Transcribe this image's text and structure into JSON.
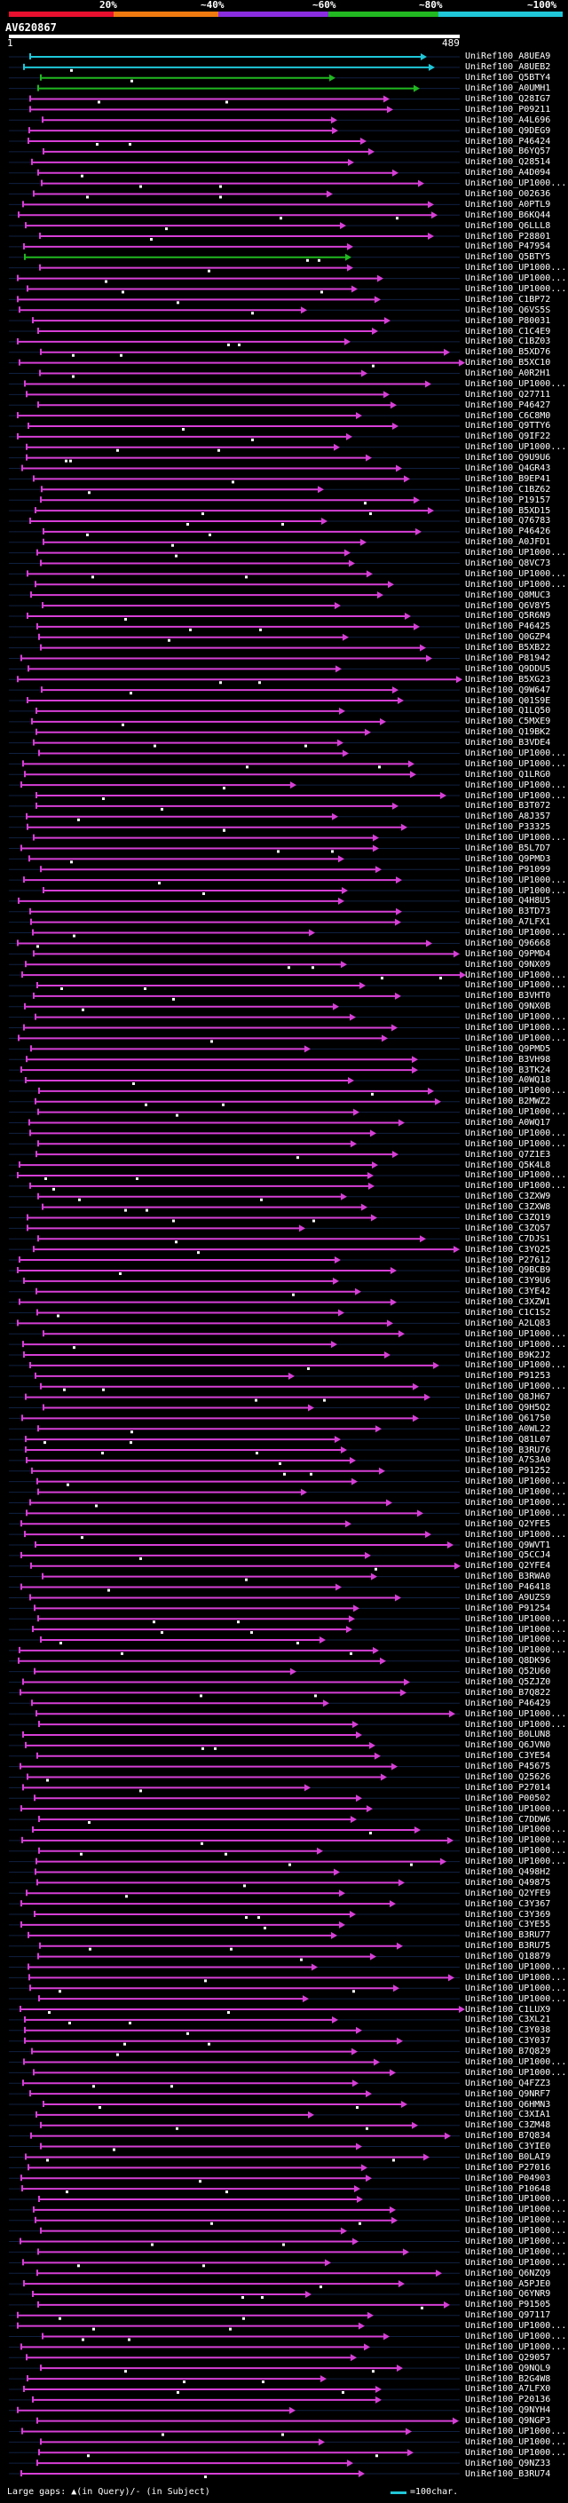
{
  "scale": {
    "ticks": [
      "20%",
      "~40%",
      "~60%",
      "~80%",
      "~100%"
    ],
    "colors": [
      "#e8102e",
      "#f07a10",
      "#8a2de0",
      "#21b821",
      "#1fc7d8"
    ]
  },
  "query": {
    "title": "AV620867",
    "start": "1",
    "end": "489"
  },
  "hit_colors": {
    "primary": "#d63fd6",
    "cyan": "#1fc7d8",
    "green": "#21b821",
    "dark": "#5a2a5a",
    "arrow": "#d63fd6"
  },
  "hits": [
    "UniRef100_A8UEA9",
    "UniRef100_A8UEB2",
    "UniRef100_Q5BTY4",
    "UniRef100_A0UMH1",
    "UniRef100_Q28IG7",
    "UniRef100_P09211",
    "UniRef100_A4L696",
    "UniRef100_Q9DEG9",
    "UniRef100_P46424",
    "UniRef100_B6YQ57",
    "UniRef100_Q28514",
    "UniRef100_A4D094",
    "UniRef100_UP1000...",
    "UniRef100_O02636",
    "UniRef100_A0PTL9",
    "UniRef100_B6KQ44",
    "UniRef100_Q6LLL8",
    "UniRef100_P28801",
    "UniRef100_P47954",
    "UniRef100_Q5BTY5",
    "UniRef100_UP1000...",
    "UniRef100_UP1000...",
    "UniRef100_UP1000...",
    "UniRef100_C1BP72",
    "UniRef100_Q6VS5S",
    "UniRef100_P80031",
    "UniRef100_C1C4E9",
    "UniRef100_C1BZ03",
    "UniRef100_B5XD76",
    "UniRef100_B5XC10",
    "UniRef100_A0R2H1",
    "UniRef100_UP1000...",
    "UniRef100_Q27711",
    "UniRef100_P46427",
    "UniRef100_C6C8M0",
    "UniRef100_Q9TTY6",
    "UniRef100_Q9IF22",
    "UniRef100_UP1000...",
    "UniRef100_Q9U9U6",
    "UniRef100_Q4GR43",
    "UniRef100_B9EP41",
    "UniRef100_C1BZ62",
    "UniRef100_P19157",
    "UniRef100_B5XD15",
    "UniRef100_Q76783",
    "UniRef100_P46426",
    "UniRef100_A0JFD1",
    "UniRef100_UP1000...",
    "UniRef100_Q8VC73",
    "UniRef100_UP1000...",
    "UniRef100_UP1000...",
    "UniRef100_Q8MUC3",
    "UniRef100_Q6V8Y5",
    "UniRef100_Q5R6N9",
    "UniRef100_P46425",
    "UniRef100_Q0GZP4",
    "UniRef100_B5XB22",
    "UniRef100_P81942",
    "UniRef100_Q9DDU5",
    "UniRef100_B5XG23",
    "UniRef100_Q9W647",
    "UniRef100_Q01S9E",
    "UniRef100_Q1LQ50",
    "UniRef100_C5MXE9",
    "UniRef100_Q19BK2",
    "UniRef100_B3VDE4",
    "UniRef100_UP1000...",
    "UniRef100_UP1000...",
    "UniRef100_Q1LRG0",
    "UniRef100_UP1000...",
    "UniRef100_UP1000...",
    "UniRef100_B3T072",
    "UniRef100_A8J357",
    "UniRef100_P33325",
    "UniRef100_UP1000...",
    "UniRef100_B5L7D7",
    "UniRef100_Q9PMD3",
    "UniRef100_P91099",
    "UniRef100_UP1000...",
    "UniRef100_UP1000...",
    "UniRef100_Q4H8U5",
    "UniRef100_B3TD73",
    "UniRef100_A7LFX1",
    "UniRef100_UP1000...",
    "UniRef100_Q96668",
    "UniRef100_Q9PMD4",
    "UniRef100_Q9NX09",
    "UniRef100_UP1000...",
    "UniRef100_UP1000...",
    "UniRef100_B3VHT0",
    "UniRef100_Q9NX0B",
    "UniRef100_UP1000...",
    "UniRef100_UP1000...",
    "UniRef100_UP1000...",
    "UniRef100_Q9PMD5",
    "UniRef100_B3VH98",
    "UniRef100_B3TK24",
    "UniRef100_A0WQ18",
    "UniRef100_UP1000...",
    "UniRef100_B2MWZ2",
    "UniRef100_UP1000...",
    "UniRef100_A0WQ17",
    "UniRef100_UP1000...",
    "UniRef100_UP1000...",
    "UniRef100_Q7Z1E3",
    "UniRef100_Q5K4L8",
    "UniRef100_UP1000...",
    "UniRef100_UP1000...",
    "UniRef100_C3ZXW9",
    "UniRef100_C3ZXW8",
    "UniRef100_C3ZQ19",
    "UniRef100_C3ZQ57",
    "UniRef100_C7DJS1",
    "UniRef100_C3YQ25",
    "UniRef100_P27612",
    "UniRef100_Q9BCB9",
    "UniRef100_C3Y9U6",
    "UniRef100_C3YE42",
    "UniRef100_C3XZW1",
    "UniRef100_C1C1S2",
    "UniRef100_A2LQ83",
    "UniRef100_UP1000...",
    "UniRef100_UP1000...",
    "UniRef100_B9K2J2",
    "UniRef100_UP1000...",
    "UniRef100_P91253",
    "UniRef100_UP1000...",
    "UniRef100_Q8JH67",
    "UniRef100_Q9H5Q2",
    "UniRef100_Q61750",
    "UniRef100_A0WL22",
    "UniRef100_Q81L07",
    "UniRef100_B3RU76",
    "UniRef100_A7S3A0",
    "UniRef100_P91252",
    "UniRef100_UP1000...",
    "UniRef100_UP1000...",
    "UniRef100_UP1000...",
    "UniRef100_UP1000...",
    "UniRef100_Q2YFE5",
    "UniRef100_UP1000...",
    "UniRef100_Q9WVT1",
    "UniRef100_Q5CCJ4",
    "UniRef100_Q2YFE4",
    "UniRef100_B3RWA0",
    "UniRef100_P46418",
    "UniRef100_A9UZS9",
    "UniRef100_P91254",
    "UniRef100_UP1000...",
    "UniRef100_UP1000...",
    "UniRef100_UP1000...",
    "UniRef100_UP1000...",
    "UniRef100_Q8DK96",
    "UniRef100_Q52U60",
    "UniRef100_Q5ZJZ0",
    "UniRef100_B7Q822",
    "UniRef100_P46429",
    "UniRef100_UP1000...",
    "UniRef100_UP1000...",
    "UniRef100_B0LUN8",
    "UniRef100_Q6JVN0",
    "UniRef100_C3YE54",
    "UniRef100_P45675",
    "UniRef100_Q25626",
    "UniRef100_P27014",
    "UniRef100_P00502",
    "UniRef100_UP1000...",
    "UniRef100_C7DDW6",
    "UniRef100_UP1000...",
    "UniRef100_UP1000...",
    "UniRef100_UP1000...",
    "UniRef100_UP1000...",
    "UniRef100_Q498H2",
    "UniRef100_Q49875",
    "UniRef100_Q2YFE9",
    "UniRef100_C3Y367",
    "UniRef100_C3Y369",
    "UniRef100_C3YE55",
    "UniRef100_B3RU77",
    "UniRef100_B3RU75",
    "UniRef100_Q18879",
    "UniRef100_UP1000...",
    "UniRef100_UP1000...",
    "UniRef100_UP1000...",
    "UniRef100_UP1000...",
    "UniRef100_C1LUX9",
    "UniRef100_C3XL21",
    "UniRef100_C3Y038",
    "UniRef100_C3Y037",
    "UniRef100_B7Q829",
    "UniRef100_UP1000...",
    "UniRef100_UP1000...",
    "UniRef100_Q4FZZ3",
    "UniRef100_Q9NRF7",
    "UniRef100_Q6HMN3",
    "UniRef100_C3XIA1",
    "UniRef100_C3ZM48",
    "UniRef100_B7Q834",
    "UniRef100_C3YIE0",
    "UniRef100_B0LAI9",
    "UniRef100_P27016",
    "UniRef100_P04903",
    "UniRef100_P10648",
    "UniRef100_UP1000...",
    "UniRef100_UP1000...",
    "UniRef100_UP1000...",
    "UniRef100_UP1000...",
    "UniRef100_UP1000...",
    "UniRef100_UP1000...",
    "UniRef100_UP1000...",
    "UniRef100_Q6NZQ9",
    "UniRef100_A5PJE0",
    "UniRef100_Q6YNR9",
    "UniRef100_P91505",
    "UniRef100_Q97117",
    "UniRef100_UP1000...",
    "UniRef100_UP1000...",
    "UniRef100_UP1000...",
    "UniRef100_Q29057",
    "UniRef100_Q9NQL9",
    "UniRef100_B2G4W8",
    "UniRef100_A7LFX0",
    "UniRef100_P20136",
    "UniRef100_Q9NYH4",
    "UniRef100_Q9NGP3",
    "UniRef100_UP1000...",
    "UniRef100_UP1000...",
    "UniRef100_UP1000...",
    "UniRef100_Q9NZ33",
    "UniRef100_B3RU74"
  ],
  "legend": {
    "left": "Large gaps: ▲(in Query)/- (in Subject)",
    "right": "=100char."
  }
}
